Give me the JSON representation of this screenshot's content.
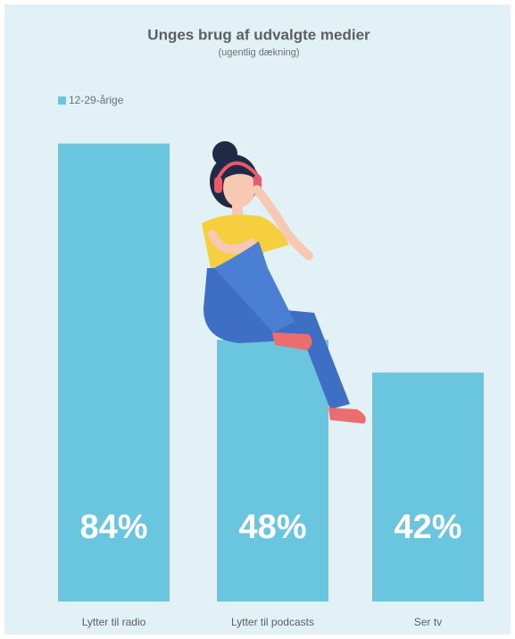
{
  "chart_data": {
    "type": "bar",
    "title": "Unges brug af udvalgte medier",
    "subtitle": "(ugentlig dækning)",
    "categories": [
      "Lytter til radio",
      "Lytter til podcasts",
      "Ser tv"
    ],
    "series": [
      {
        "name": "12-29-årige",
        "color": "#6ac6de",
        "values": [
          84,
          48,
          42
        ],
        "value_labels": [
          "84%",
          "48%",
          "42%"
        ]
      }
    ]
  }
}
